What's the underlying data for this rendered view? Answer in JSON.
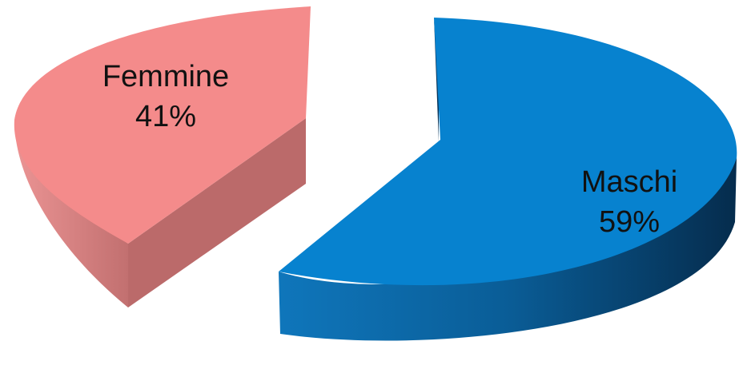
{
  "chart_data": {
    "type": "pie",
    "style": "3d-exploded",
    "title": "",
    "slices": [
      {
        "label": "Maschi",
        "value": 59,
        "value_label": "59%",
        "color_top": "#0782cf",
        "color_side_dark": "#06345a",
        "color_side_light": "#0d6aa8"
      },
      {
        "label": "Femmine",
        "value": 41,
        "value_label": "41%",
        "color_top": "#f48b8b",
        "color_side_dark": "#bb6a6a",
        "color_side_light": "#e68f8f"
      }
    ],
    "legend": "none"
  }
}
